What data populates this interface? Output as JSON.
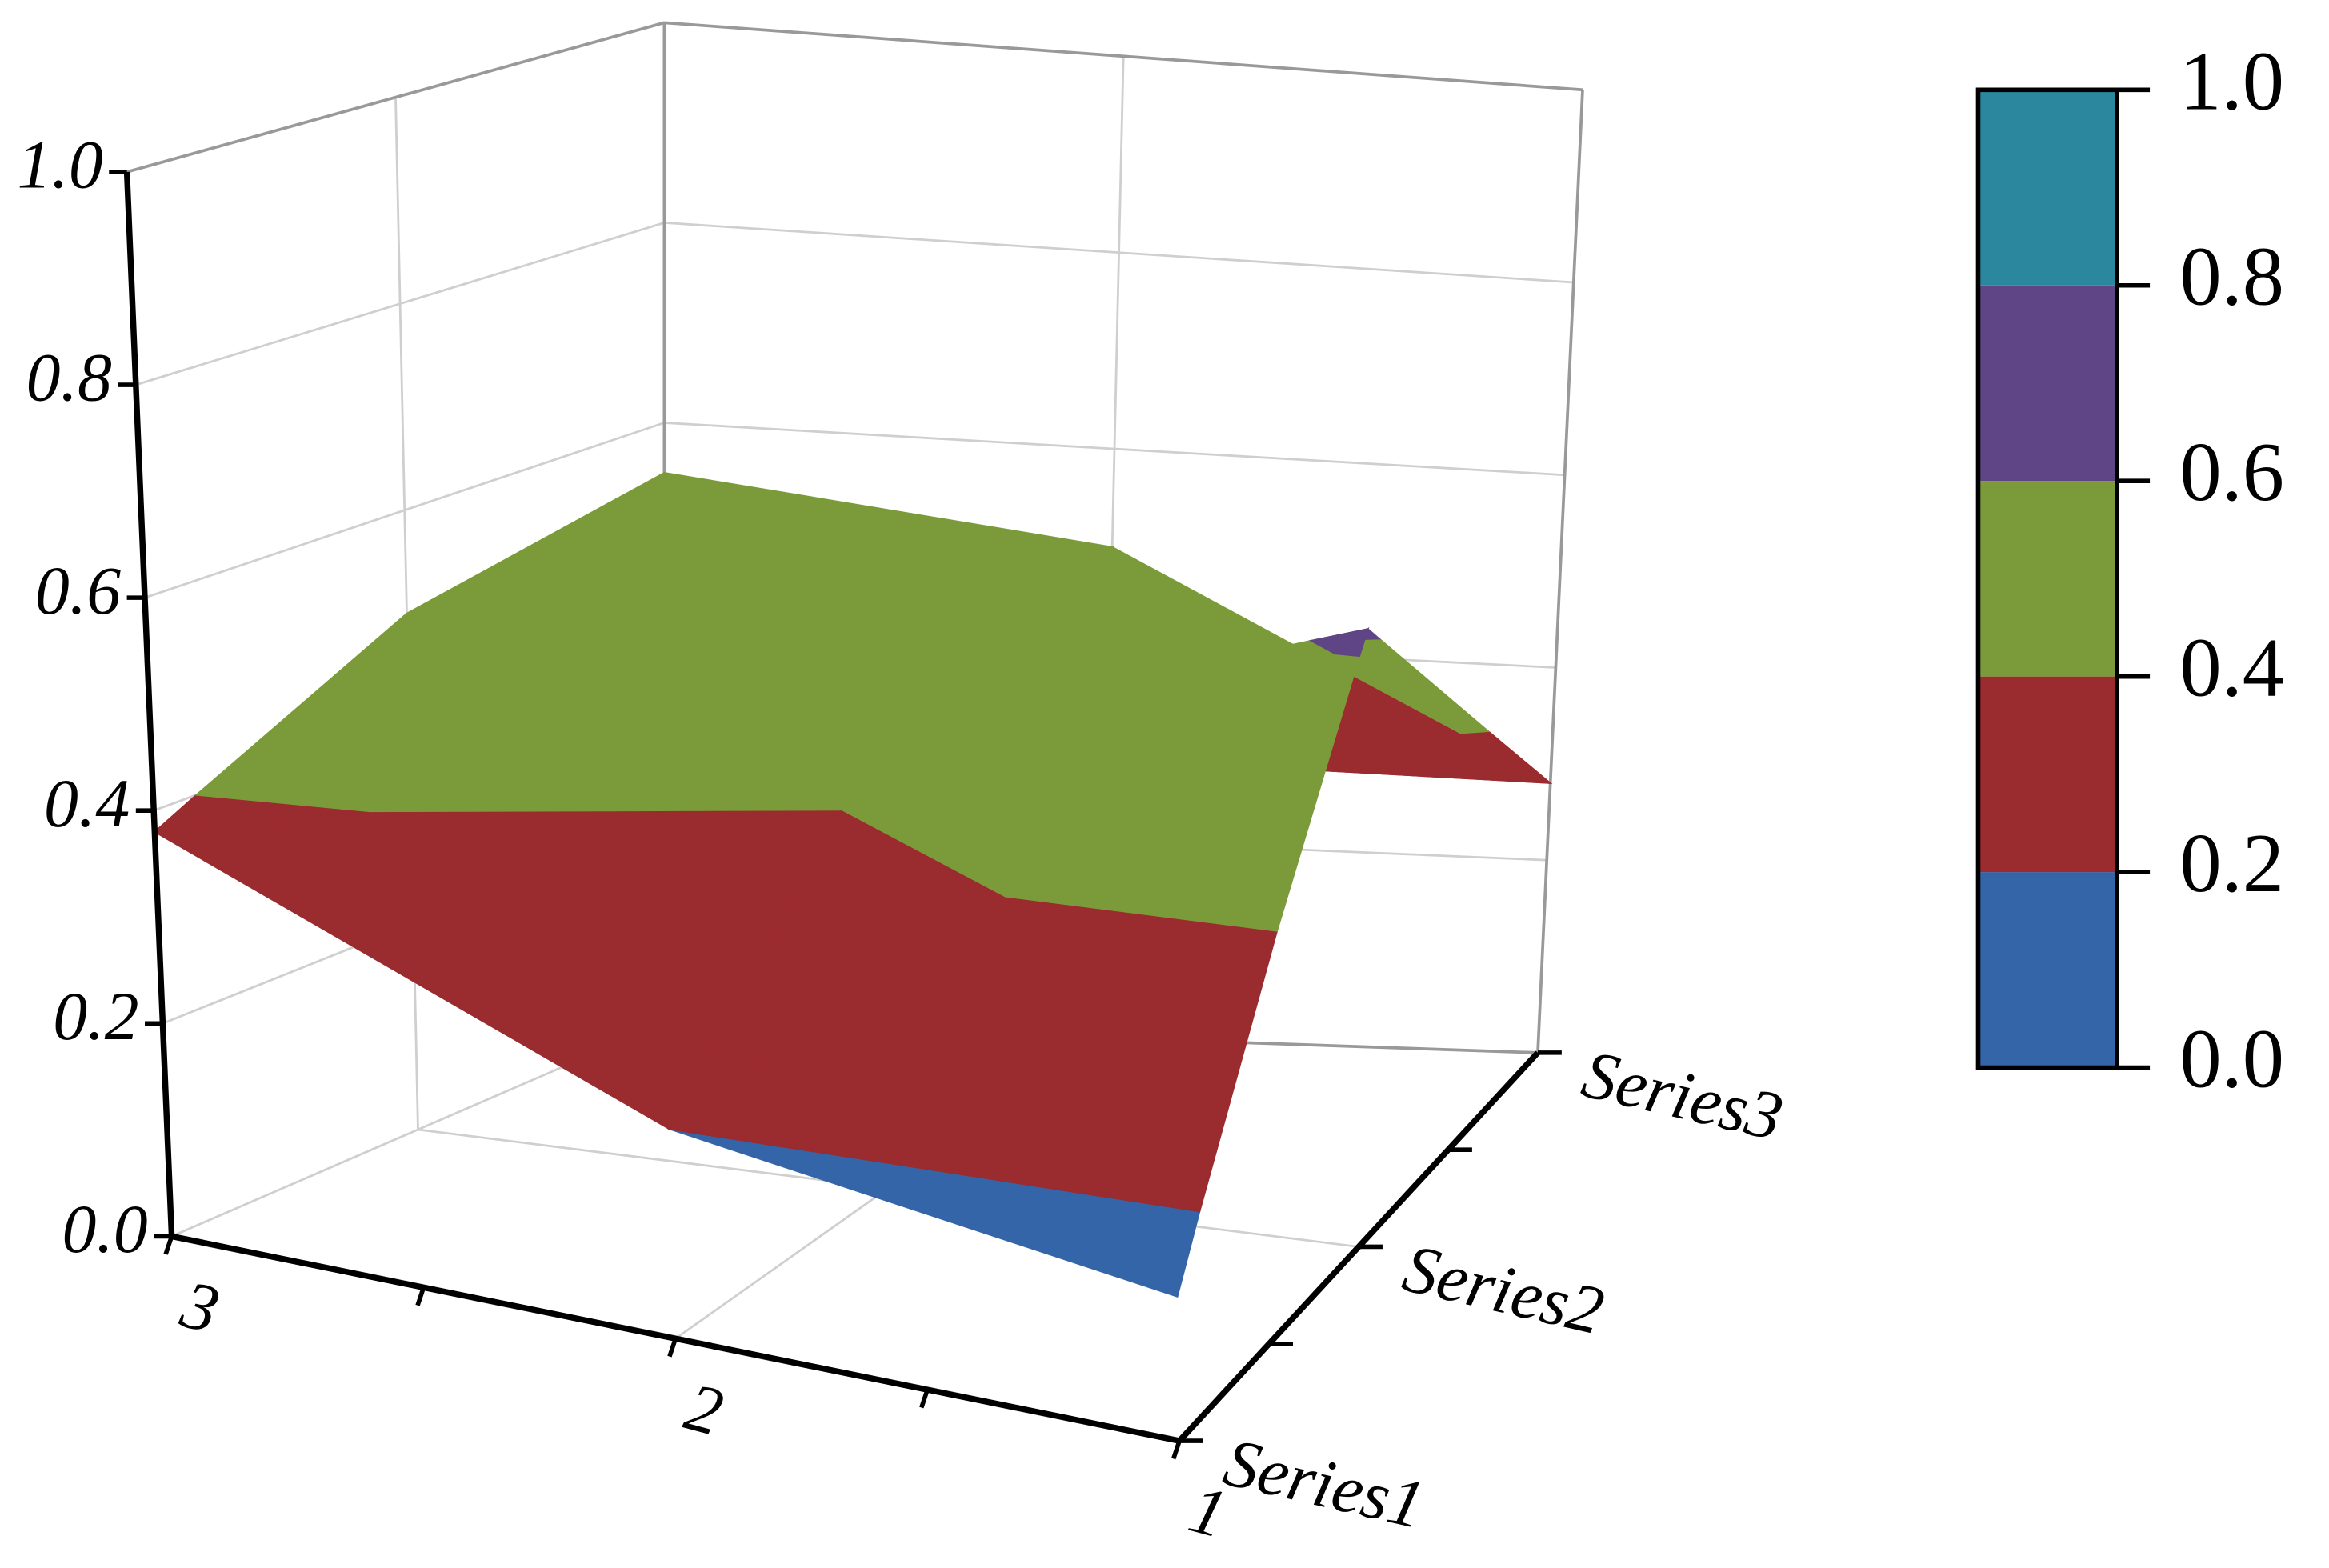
{
  "chart_data": {
    "type": "surface",
    "categories": [
      "3",
      "2",
      "1"
    ],
    "series": [
      {
        "name": "Series1",
        "values": [
          0.38,
          0.2,
          0.14
        ]
      },
      {
        "name": "Series2",
        "values": [
          0.5,
          0.45,
          0.62
        ]
      },
      {
        "name": "Series3",
        "values": [
          0.55,
          0.5,
          0.28
        ]
      }
    ],
    "zlim": [
      0,
      1
    ],
    "zticks": [
      {
        "value": 0,
        "label": "0.0"
      },
      0.2,
      0.4,
      0.6,
      0.8,
      {
        "value": 1,
        "label": "1.0"
      }
    ],
    "band_colors": [
      "#3465a8",
      "#9a2b2e",
      "#7b9b3a",
      "#5f4585",
      "#2a879e"
    ],
    "grid": true
  }
}
